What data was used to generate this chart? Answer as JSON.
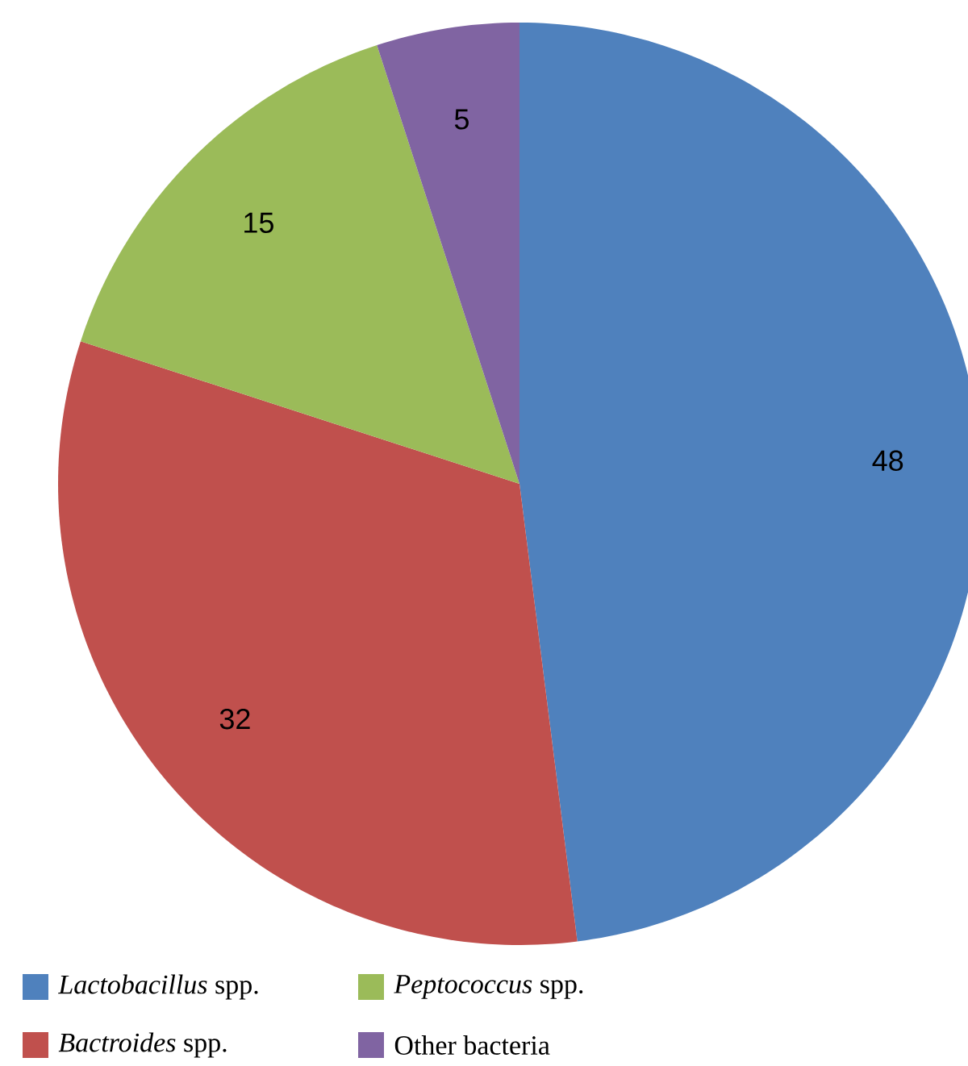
{
  "chart_data": {
    "type": "pie",
    "categories": [
      "*Lactobacillus* spp.",
      "*Bactroides* spp.",
      "*Peptococcus* spp.",
      "Other bacteria"
    ],
    "values": [
      48,
      32,
      15,
      5
    ],
    "colors": [
      "#4f81bd",
      "#c0504d",
      "#9bbb59",
      "#8064a2"
    ],
    "data_labels": true,
    "legend": "bottom"
  }
}
